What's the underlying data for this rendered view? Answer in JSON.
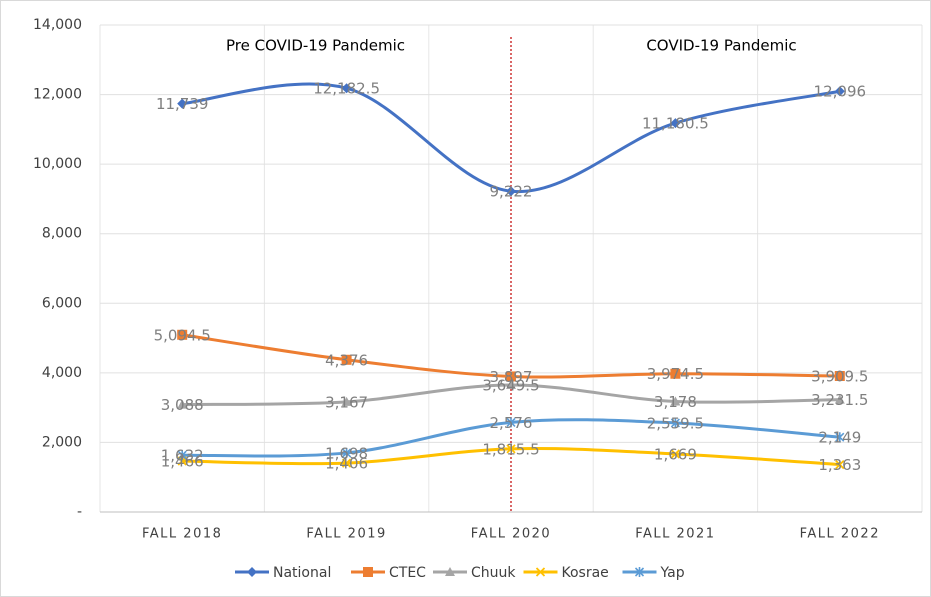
{
  "chart_data": {
    "type": "line",
    "categories": [
      "FALL 2018",
      "FALL 2019",
      "FALL 2020",
      "FALL 2021",
      "FALL 2022"
    ],
    "series": [
      {
        "name": "National",
        "color": "#4472c4",
        "marker": "diamond",
        "values": [
          11739,
          12182.5,
          9222,
          11180.5,
          12096
        ],
        "value_labels": [
          "11,739",
          "12,182.5",
          "9,222",
          "11,180.5",
          "12,096"
        ]
      },
      {
        "name": "CTEC",
        "color": "#ed7d31",
        "marker": "square",
        "values": [
          5094.5,
          4376,
          3897,
          3974.5,
          3909.5
        ],
        "value_labels": [
          "5,094.5",
          "4,376",
          "3,897",
          "3,974.5",
          "3,909.5"
        ]
      },
      {
        "name": "Chuuk",
        "color": "#a5a5a5",
        "marker": "triangle",
        "values": [
          3088,
          3167,
          3649.5,
          3178,
          3231.5
        ],
        "value_labels": [
          "3,088",
          "3,167",
          "3,649.5",
          "3,178",
          "3,231.5"
        ]
      },
      {
        "name": "Kosrae",
        "color": "#ffc000",
        "marker": "x",
        "values": [
          1466,
          1406,
          1815.5,
          1669,
          1363
        ],
        "value_labels": [
          "1,466",
          "1,406",
          "1,815.5",
          "1,669",
          "1,363"
        ]
      },
      {
        "name": "Yap",
        "color": "#5b9bd5",
        "marker": "star",
        "values": [
          1632,
          1698,
          2576,
          2559.5,
          2149
        ],
        "value_labels": [
          "1,632",
          "1,698",
          "2,576",
          "2,559.5",
          "2,149"
        ]
      }
    ],
    "ylim": [
      0,
      14000
    ],
    "yticks": [
      {
        "value": 0,
        "label": "-"
      },
      {
        "value": 2000,
        "label": "2,000"
      },
      {
        "value": 4000,
        "label": "4,000"
      },
      {
        "value": 6000,
        "label": "6,000"
      },
      {
        "value": 8000,
        "label": "8,000"
      },
      {
        "value": 10000,
        "label": "10,000"
      },
      {
        "value": 12000,
        "label": "12,000"
      },
      {
        "value": 14000,
        "label": "14,000"
      }
    ],
    "grid": true,
    "smooth": true,
    "legend": "bottom",
    "annotations": [
      {
        "text": "Pre COVID-19 Pandemic"
      },
      {
        "text": "COVID-19 Pandemic"
      }
    ]
  }
}
